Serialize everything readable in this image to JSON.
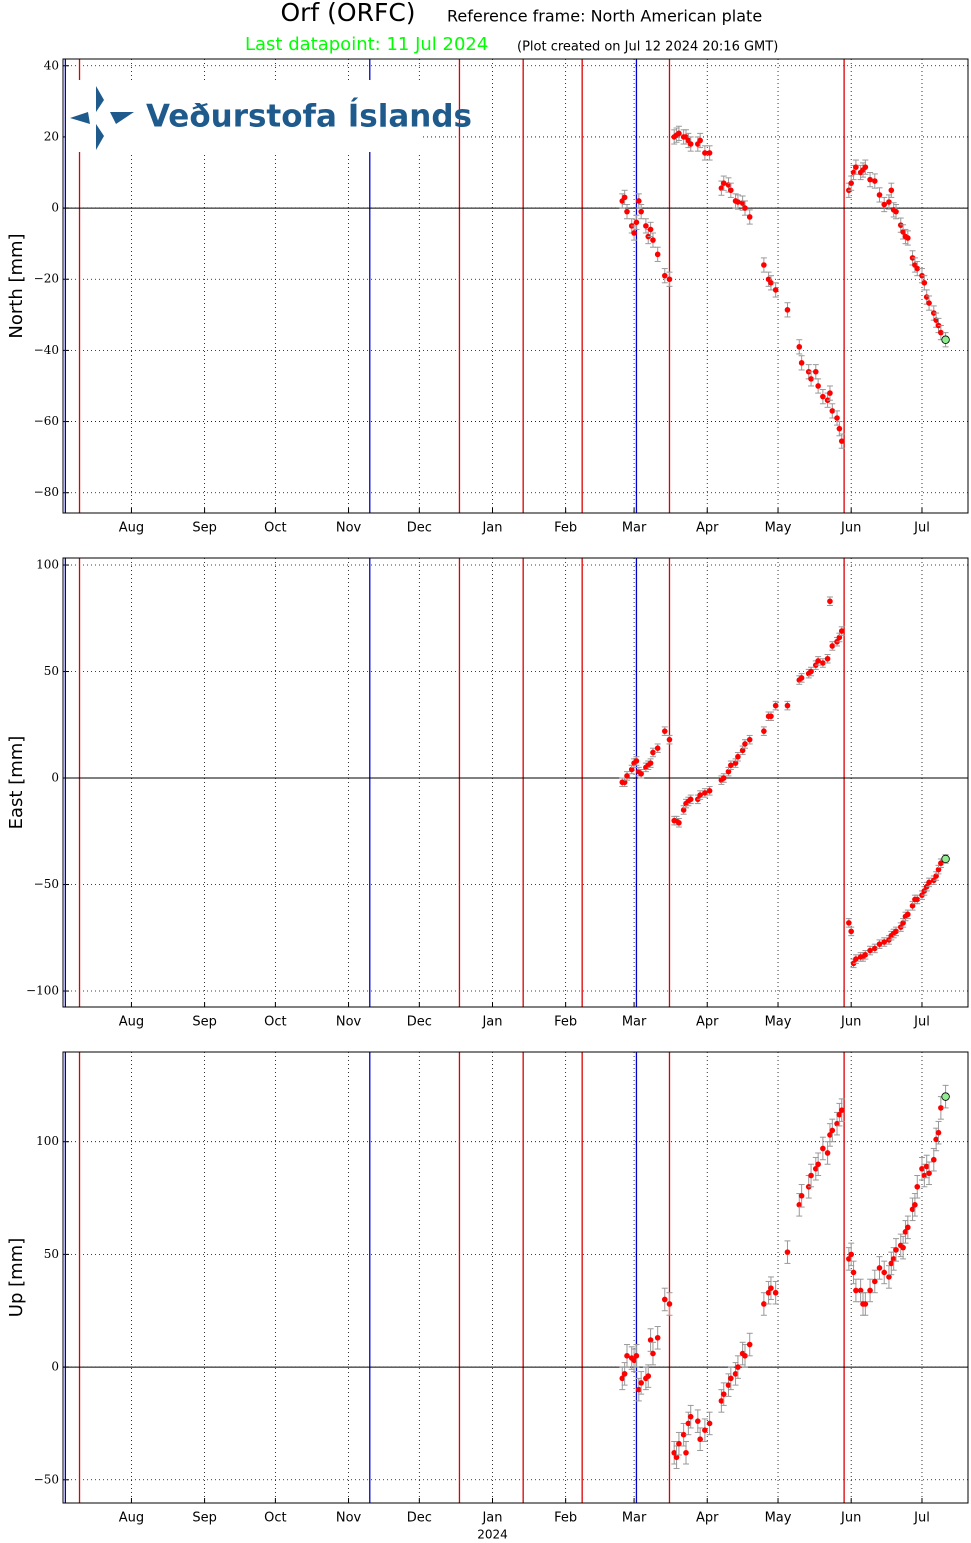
{
  "header": {
    "title": "Orf (ORFC)",
    "frame": "Reference frame: North American plate",
    "last": "Last datapoint: 11 Jul 2024",
    "created": "(Plot created on Jul 12 2024 20:16 GMT)",
    "logo": "Veðurstofa Íslands"
  },
  "events": [
    {
      "x": 3,
      "color": "#0000cc"
    },
    {
      "x": 9,
      "color": "#dd0000"
    },
    {
      "x": 132,
      "color": "#0000cc"
    },
    {
      "x": 170,
      "color": "#dd0000"
    },
    {
      "x": 197,
      "color": "#dd0000"
    },
    {
      "x": 222,
      "color": "#dd0000"
    },
    {
      "x": 245,
      "color": "#0000cc"
    },
    {
      "x": 259,
      "color": "#dd0000"
    },
    {
      "x": 333,
      "color": "#dd0000"
    }
  ],
  "chart_data": [
    {
      "type": "scatter",
      "ylabel": "North [mm]",
      "color": "#ff0000",
      "last_color": "#90ee90",
      "error": 2,
      "zero_line": true,
      "grid": true,
      "xlim": [
        2,
        385.5
      ],
      "xticks": [
        {
          "value": 31,
          "label": "Aug"
        },
        {
          "value": 62,
          "label": "Sep"
        },
        {
          "value": 92,
          "label": "Oct"
        },
        {
          "value": 123,
          "label": "Nov"
        },
        {
          "value": 153,
          "label": "Dec"
        },
        {
          "value": 184,
          "label": "Jan"
        },
        {
          "value": 215,
          "label": "Feb"
        },
        {
          "value": 244,
          "label": "Mar"
        },
        {
          "value": 275,
          "label": "Apr"
        },
        {
          "value": 305,
          "label": "May"
        },
        {
          "value": 336,
          "label": "Jun"
        },
        {
          "value": 366,
          "label": "Jul"
        }
      ],
      "ylim": [
        -85.7,
        41.9
      ],
      "yticks": [
        {
          "value": -80,
          "label": "−80"
        },
        {
          "value": -60,
          "label": "−60"
        },
        {
          "value": -40,
          "label": "−40"
        },
        {
          "value": -20,
          "label": "−20"
        },
        0,
        20,
        40
      ],
      "x": [
        239,
        240,
        241,
        243,
        244,
        245,
        246,
        247,
        249,
        250,
        251,
        252,
        254,
        257,
        259,
        261,
        262,
        263,
        265,
        266,
        267,
        268,
        271,
        272,
        274,
        276,
        281,
        282,
        284,
        285,
        287,
        288,
        290,
        291,
        293,
        299,
        301,
        302,
        304,
        309,
        314,
        315,
        318,
        319,
        321,
        322,
        324,
        326,
        327,
        328,
        330,
        331,
        332,
        335,
        336,
        337,
        338,
        340,
        341,
        342,
        344,
        346,
        348,
        350,
        352,
        353,
        354,
        355,
        357,
        358,
        359,
        360,
        362,
        363,
        364,
        366,
        367,
        368,
        369,
        371,
        372,
        373,
        374,
        376
      ],
      "values": [
        2,
        3,
        -1,
        -5,
        -7,
        -4,
        2,
        -1,
        -5,
        -8,
        -6,
        -9,
        -13,
        -19,
        -20,
        20,
        20.5,
        21,
        20,
        20,
        19,
        18,
        18,
        19,
        15.5,
        15.5,
        5.6,
        7,
        6.5,
        5,
        2,
        1.7,
        1.4,
        0,
        -2.5,
        -16,
        -20,
        -21,
        -23,
        -28.6,
        -39,
        -43.5,
        -46,
        -48,
        -46,
        -50,
        -53,
        -54,
        -52,
        -57,
        -59,
        -62,
        -65.5,
        5,
        7,
        10,
        11.5,
        10,
        10.7,
        11.5,
        8,
        7.6,
        3.7,
        1,
        1.7,
        5,
        -0.5,
        -1,
        -4.8,
        -6.7,
        -8,
        -8.4,
        -14,
        -16,
        -17,
        -19,
        -21,
        -25,
        -26.7,
        -29.5,
        -31.5,
        -33,
        -35,
        -37
      ]
    },
    {
      "type": "scatter",
      "ylabel": "East [mm]",
      "color": "#ff0000",
      "last_color": "#90ee90",
      "error": 2,
      "zero_line": true,
      "grid": true,
      "xlim": [
        2,
        385.5
      ],
      "xticks": [
        {
          "value": 31,
          "label": "Aug"
        },
        {
          "value": 62,
          "label": "Sep"
        },
        {
          "value": 92,
          "label": "Oct"
        },
        {
          "value": 123,
          "label": "Nov"
        },
        {
          "value": 153,
          "label": "Dec"
        },
        {
          "value": 184,
          "label": "Jan"
        },
        {
          "value": 215,
          "label": "Feb"
        },
        {
          "value": 244,
          "label": "Mar"
        },
        {
          "value": 275,
          "label": "Apr"
        },
        {
          "value": 305,
          "label": "May"
        },
        {
          "value": 336,
          "label": "Jun"
        },
        {
          "value": 366,
          "label": "Jul"
        }
      ],
      "ylim": [
        -107.5,
        103.3
      ],
      "yticks": [
        {
          "value": -100,
          "label": "−100"
        },
        {
          "value": -50,
          "label": "−50"
        },
        0,
        50,
        100
      ],
      "x": [
        239,
        240,
        241,
        243,
        244,
        245,
        246,
        247,
        249,
        250,
        251,
        252,
        254,
        257,
        259,
        261,
        262,
        263,
        265,
        266,
        267,
        268,
        271,
        272,
        274,
        276,
        281,
        282,
        284,
        285,
        287,
        288,
        290,
        291,
        293,
        299,
        301,
        302,
        304,
        309,
        314,
        315,
        318,
        319,
        321,
        322,
        324,
        326,
        327,
        328,
        330,
        331,
        332,
        335,
        336,
        337,
        338,
        340,
        341,
        342,
        344,
        346,
        348,
        350,
        352,
        353,
        354,
        355,
        357,
        358,
        359,
        360,
        362,
        363,
        364,
        366,
        367,
        368,
        369,
        371,
        372,
        373,
        374,
        376
      ],
      "values": [
        -2,
        -2,
        1,
        4,
        7,
        8,
        3,
        2,
        5,
        6,
        7,
        12,
        14,
        22,
        18,
        -20,
        -20,
        -21,
        -15,
        -12,
        -11,
        -10,
        -10,
        -8,
        -7,
        -6,
        -1,
        0,
        3,
        6,
        7,
        10,
        13,
        16,
        18,
        22,
        29,
        29,
        34,
        34,
        46,
        47,
        49,
        50,
        53,
        55,
        54,
        56,
        83,
        62,
        64,
        66,
        69,
        -68,
        -72,
        -87,
        -85,
        -84,
        -84,
        -83,
        -81,
        -80,
        -78,
        -77,
        -76,
        -74,
        -73,
        -72,
        -70,
        -68,
        -65,
        -64,
        -60,
        -57,
        -57,
        -55,
        -53,
        -51,
        -49,
        -48,
        -46,
        -43,
        -40,
        -38
      ]
    },
    {
      "type": "scatter",
      "ylabel": "Up [mm]",
      "xlabel": "2024",
      "color": "#ff0000",
      "last_color": "#90ee90",
      "error": 5,
      "zero_line": true,
      "grid": true,
      "xlim": [
        2,
        385.5
      ],
      "xticks": [
        {
          "value": 31,
          "label": "Aug"
        },
        {
          "value": 62,
          "label": "Sep"
        },
        {
          "value": 92,
          "label": "Oct"
        },
        {
          "value": 123,
          "label": "Nov"
        },
        {
          "value": 153,
          "label": "Dec"
        },
        {
          "value": 184,
          "label": "Jan"
        },
        {
          "value": 215,
          "label": "Feb"
        },
        {
          "value": 244,
          "label": "Mar"
        },
        {
          "value": 275,
          "label": "Apr"
        },
        {
          "value": 305,
          "label": "May"
        },
        {
          "value": 336,
          "label": "Jun"
        },
        {
          "value": 366,
          "label": "Jul"
        }
      ],
      "ylim": [
        -60.3,
        139.8
      ],
      "yticks": [
        {
          "value": -50,
          "label": "−50"
        },
        0,
        50,
        100
      ],
      "x": [
        239,
        240,
        241,
        243,
        244,
        245,
        246,
        247,
        249,
        250,
        251,
        252,
        254,
        257,
        259,
        261,
        262,
        263,
        265,
        266,
        267,
        268,
        271,
        272,
        274,
        276,
        281,
        282,
        284,
        285,
        287,
        288,
        290,
        291,
        293,
        299,
        301,
        302,
        304,
        309,
        314,
        315,
        318,
        319,
        321,
        322,
        324,
        326,
        327,
        328,
        330,
        331,
        332,
        335,
        336,
        337,
        338,
        340,
        341,
        342,
        344,
        346,
        348,
        350,
        352,
        353,
        354,
        355,
        357,
        358,
        359,
        360,
        362,
        363,
        364,
        366,
        367,
        368,
        369,
        371,
        372,
        373,
        374,
        376
      ],
      "values": [
        -5,
        -3,
        5,
        4,
        3,
        5,
        -10,
        -7,
        -5,
        -4,
        12,
        6,
        13,
        30,
        28,
        -38,
        -40,
        -34,
        -30,
        -38,
        -25,
        -22,
        -24,
        -32,
        -28,
        -25,
        -15,
        -12,
        -8,
        -5,
        -3,
        0,
        6,
        5,
        10,
        28,
        33,
        35,
        33,
        51,
        72,
        76,
        80,
        85,
        88,
        90,
        97,
        95,
        103,
        105,
        108,
        112,
        114,
        48,
        50,
        42,
        34,
        34,
        28,
        28,
        34,
        38,
        44,
        42,
        40,
        46,
        48,
        52,
        54,
        53,
        60,
        62,
        70,
        72,
        80,
        88,
        85,
        89,
        86,
        92,
        101,
        104,
        115,
        120
      ]
    }
  ]
}
